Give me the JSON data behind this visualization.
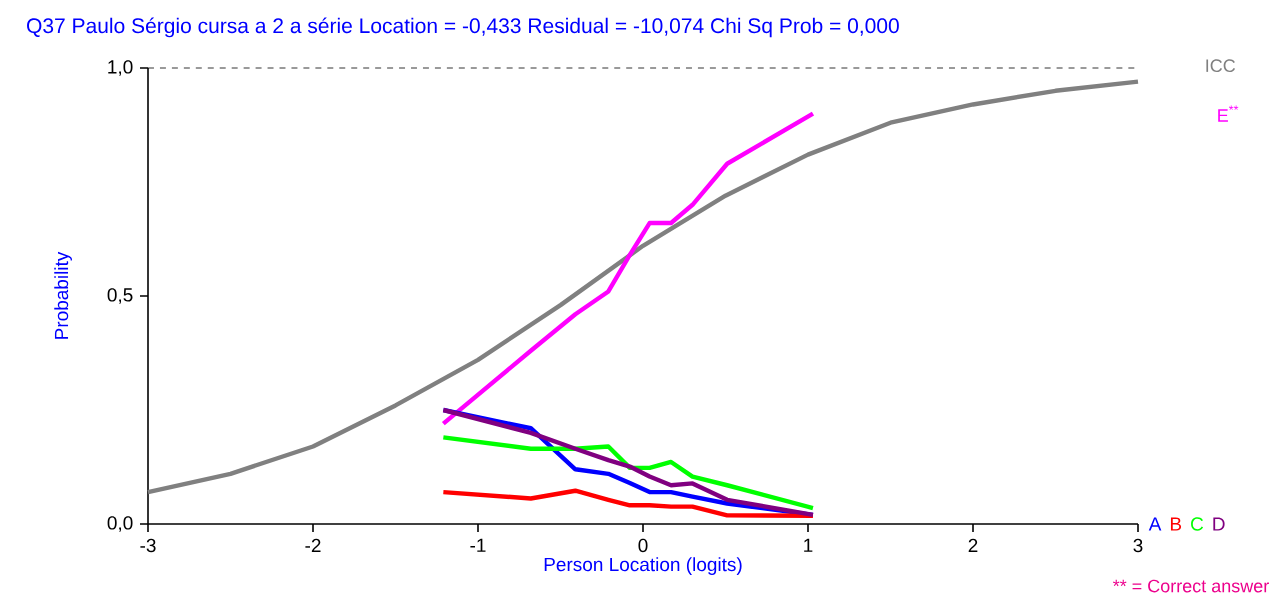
{
  "chart_data": {
    "type": "line",
    "title": "Q37   Paulo Sérgio cursa a 2 a série     Location = -0,433     Residual = -10,074     Chi Sq Prob = 0,000",
    "xlabel": "Person Location (logits)",
    "ylabel": "Probability",
    "xlim": [
      -3,
      3
    ],
    "ylim": [
      0,
      1
    ],
    "xticks": [
      -3,
      -2,
      -1,
      0,
      1,
      2,
      3
    ],
    "yticks": [
      {
        "value": 0,
        "label": "0,0"
      },
      {
        "value": 0.5,
        "label": "0,5"
      },
      {
        "value": 1,
        "label": "1,0"
      }
    ],
    "ref_lines": [
      {
        "axis": "y",
        "value": 1,
        "color": "#000000",
        "line_style": "dashed"
      }
    ],
    "annotations": [
      "** = Correct answer"
    ],
    "series": [
      {
        "name": "ICC",
        "color": "#808080",
        "x": [
          -3,
          -2.5,
          -2,
          -1.5,
          -1,
          -0.5,
          0,
          0.5,
          1,
          1.5,
          2,
          2.5,
          3
        ],
        "values": [
          0.07,
          0.11,
          0.17,
          0.26,
          0.36,
          0.48,
          0.61,
          0.72,
          0.81,
          0.88,
          0.92,
          0.95,
          0.97
        ]
      },
      {
        "name": "E$^{**}$",
        "color": "#ff00ff",
        "x": [
          -1.21,
          -0.68,
          -0.41,
          -0.21,
          -0.08,
          0.04,
          0.17,
          0.3,
          0.51,
          1.03
        ],
        "values": [
          0.22,
          0.38,
          0.46,
          0.51,
          0.59,
          0.66,
          0.66,
          0.7,
          0.79,
          0.9
        ]
      },
      {
        "name": "A",
        "color": "#0000ff",
        "x": [
          -1.21,
          -0.68,
          -0.41,
          -0.21,
          -0.08,
          0.04,
          0.17,
          0.3,
          0.51,
          1.03
        ],
        "values": [
          0.25,
          0.21,
          0.12,
          0.11,
          0.09,
          0.07,
          0.07,
          0.06,
          0.045,
          0.02
        ]
      },
      {
        "name": "B",
        "color": "#ff0000",
        "x": [
          -1.21,
          -0.68,
          -0.41,
          -0.21,
          -0.08,
          0.04,
          0.17,
          0.3,
          0.51,
          1.03
        ],
        "values": [
          0.07,
          0.056,
          0.073,
          0.053,
          0.041,
          0.041,
          0.038,
          0.038,
          0.019,
          0.018
        ]
      },
      {
        "name": "C",
        "color": "#00ff00",
        "x": [
          -1.21,
          -0.68,
          -0.41,
          -0.21,
          -0.08,
          0.04,
          0.17,
          0.3,
          0.51,
          1.03
        ],
        "values": [
          0.19,
          0.165,
          0.165,
          0.17,
          0.123,
          0.123,
          0.136,
          0.104,
          0.085,
          0.035
        ]
      },
      {
        "name": "D",
        "color": "#800080",
        "x": [
          -1.21,
          -0.68,
          -0.41,
          -0.21,
          -0.08,
          0.04,
          0.17,
          0.3,
          0.51,
          1.03
        ],
        "values": [
          0.25,
          0.2,
          0.165,
          0.14,
          0.126,
          0.104,
          0.085,
          0.089,
          0.053,
          0.02
        ]
      }
    ]
  }
}
